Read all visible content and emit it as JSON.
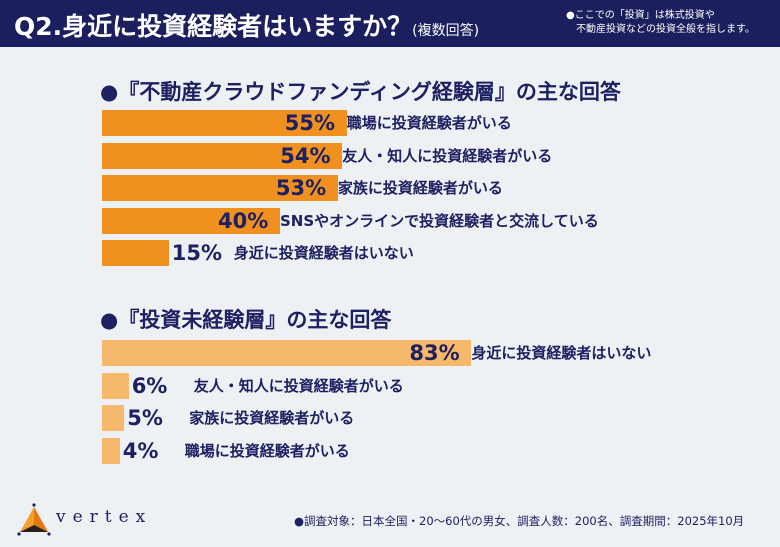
{
  "header": {
    "title": "Q2.身近に投資経験者はいますか？",
    "title_suffix": "(複数回答)",
    "note": "●ここでの「投資」は株式投資や\n　不動産投資などの投資全般を指します。"
  },
  "chart_data": [
    {
      "type": "bar",
      "orientation": "horizontal",
      "title": "●『不動産クラウドファンディング経験層』の主な回答",
      "categories": [
        "職場に投資経験者がいる",
        "友人・知人に投資経験者がいる",
        "家族に投資経験者がいる",
        "SNSやオンラインで投資経験者と交流している",
        "身近に投資経験者はいない"
      ],
      "values": [
        55,
        54,
        53,
        40,
        15
      ],
      "unit": "%",
      "color": "#f0901e"
    },
    {
      "type": "bar",
      "orientation": "horizontal",
      "title": "●『投資未経験層』の主な回答",
      "categories": [
        "身近に投資経験者はいない",
        "友人・知人に投資経験者がいる",
        "家族に投資経験者がいる",
        "職場に投資経験者がいる"
      ],
      "values": [
        83,
        6,
        5,
        4
      ],
      "unit": "%",
      "color": "#f6b86a"
    }
  ],
  "footer": {
    "logo": "vertex",
    "survey_note": "●調査対象：日本全国・20～60代の男女、調査人数：200名、調査期間：2025年10月"
  },
  "colors": {
    "header_bg": "#1b1f5e",
    "text": "#1d2161",
    "background": "#eef1f4"
  }
}
